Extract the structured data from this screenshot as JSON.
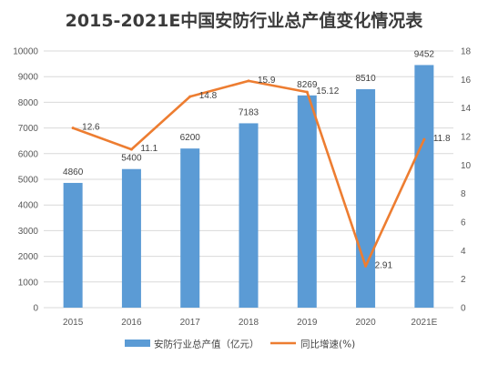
{
  "chart_data": {
    "type": "bar",
    "title": "2015-2021E中国安防行业总产值变化情况表",
    "categories": [
      "2015",
      "2016",
      "2017",
      "2018",
      "2019",
      "2020",
      "2021E"
    ],
    "series": [
      {
        "name": "安防行业总产值（亿元）",
        "type": "bar",
        "axis": "left",
        "color": "#5b9bd5",
        "values": [
          4860,
          5400,
          6200,
          7183,
          8269,
          8510,
          9452
        ],
        "labels": [
          "4860",
          "5400",
          "6200",
          "7183",
          "8269",
          "8510",
          "9452"
        ]
      },
      {
        "name": "同比增速(%)",
        "type": "line",
        "axis": "right",
        "color": "#ed7d31",
        "values": [
          12.6,
          11.1,
          14.8,
          15.9,
          15.12,
          2.91,
          11.8
        ],
        "labels": [
          "12.6",
          "11.1",
          "14.8",
          "15.9",
          "15.12",
          "2.91",
          "11.8"
        ]
      }
    ],
    "y_left": {
      "ylim": [
        0,
        10000
      ],
      "ticks": [
        "0",
        "1000",
        "2000",
        "3000",
        "4000",
        "5000",
        "6000",
        "7000",
        "8000",
        "9000",
        "10000"
      ]
    },
    "y_right": {
      "ylim": [
        0,
        18
      ],
      "ticks": [
        "0",
        "2",
        "4",
        "6",
        "8",
        "10",
        "12",
        "14",
        "16",
        "18"
      ]
    },
    "grid": true,
    "legend_position": "bottom"
  }
}
